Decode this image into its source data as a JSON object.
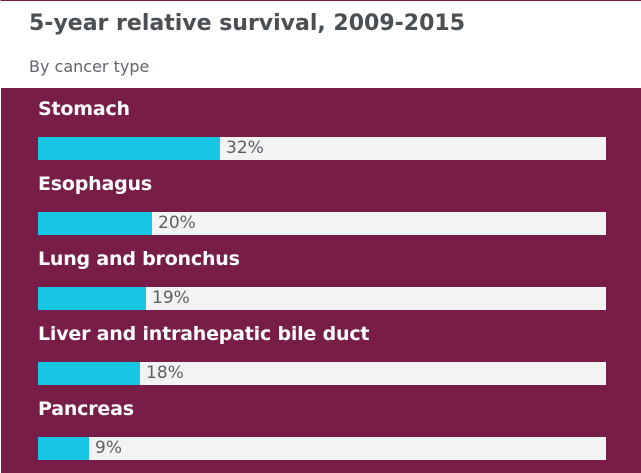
{
  "header": {
    "title": "5-year relative survival, 2009-2015",
    "subtitle": "By cancer type"
  },
  "colors": {
    "panel_background": "#781c48",
    "bar_fill": "#16c6e2",
    "bar_track": "#f3f3f3",
    "title_text": "#4a4f54",
    "label_text": "#ffffff",
    "value_text": "#5a5f65"
  },
  "chart_data": {
    "type": "bar",
    "orientation": "horizontal",
    "title": "5-year relative survival, 2009-2015",
    "subtitle": "By cancer type",
    "categories": [
      "Stomach",
      "Esophagus",
      "Lung and bronchus",
      "Liver and intrahepatic bile duct",
      "Pancreas"
    ],
    "values": [
      32,
      20,
      19,
      18,
      9
    ],
    "value_labels": [
      "32%",
      "20%",
      "19%",
      "18%",
      "9%"
    ],
    "unit": "%",
    "xlim": [
      0,
      100
    ],
    "grid": false,
    "legend": "none"
  }
}
